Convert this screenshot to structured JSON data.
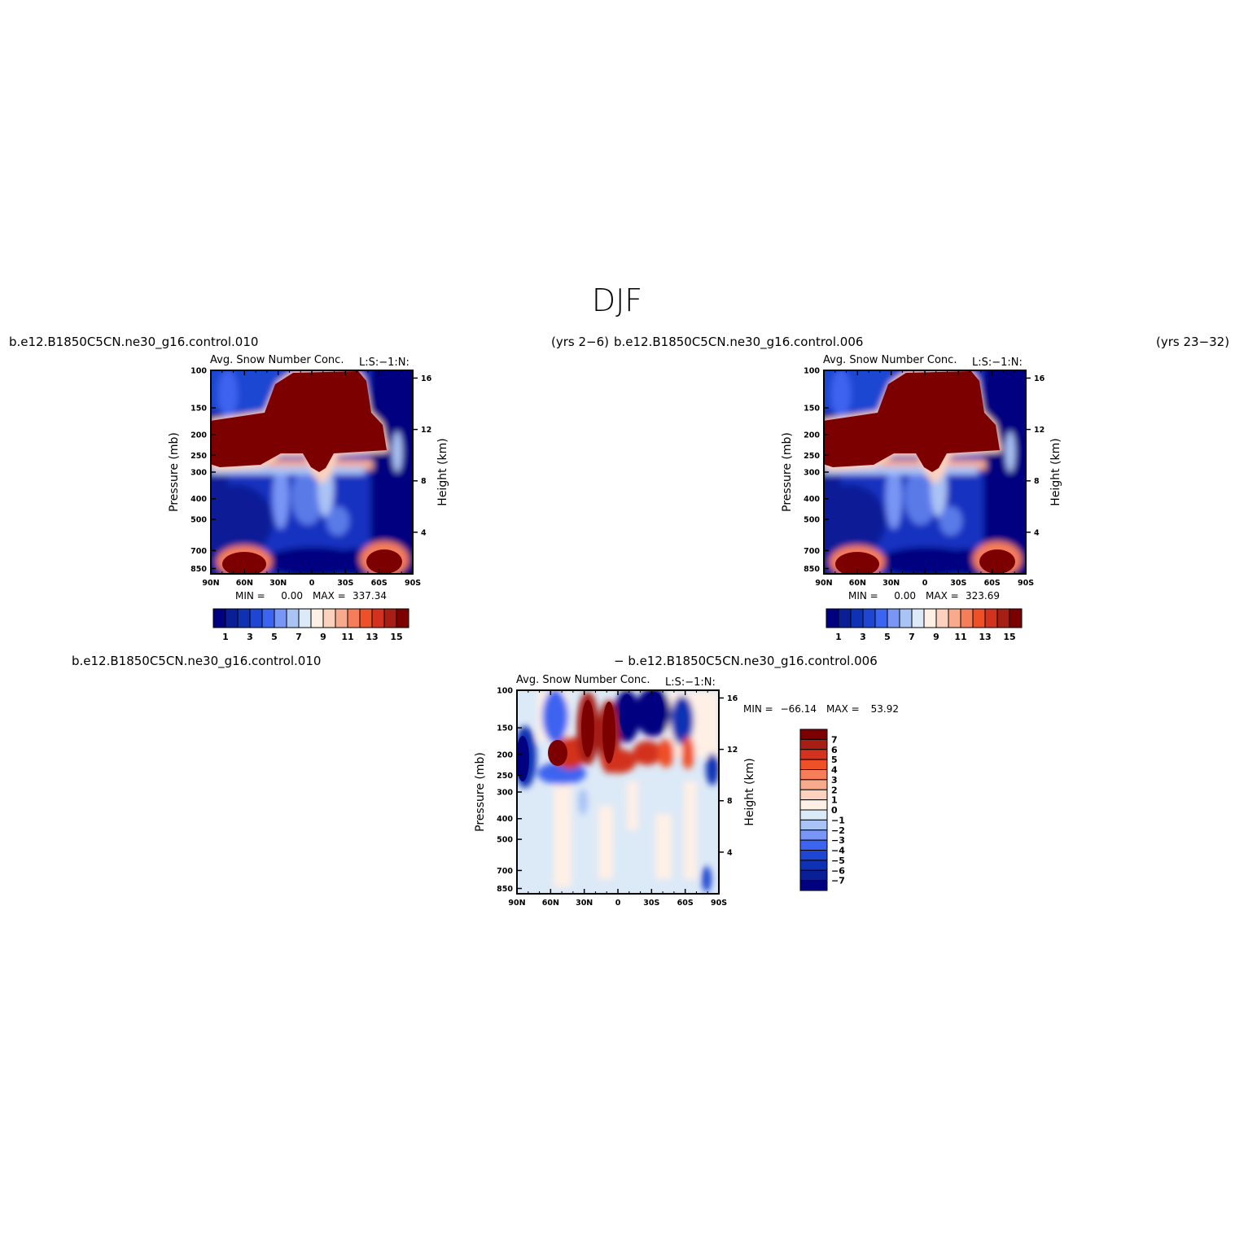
{
  "figure": {
    "title": "DJF",
    "panel1_left": "b.e12.B1850C5CN.ne30_g16.control.010",
    "panel1_right": "(yrs  2−6)",
    "panel2_left": "b.e12.B1850C5CN.ne30_g16.control.006",
    "panel2_right": "(yrs  23−32)",
    "panel3_left": "b.e12.B1850C5CN.ne30_g16.control.010",
    "panel3_right": "− b.e12.B1850C5CN.ne30_g16.control.006"
  },
  "colors": {
    "seq": [
      "#000080",
      "#0a1e96",
      "#0f32b4",
      "#1e46d2",
      "#3c64f0",
      "#7896f5",
      "#aac3f5",
      "#dce9f7",
      "#fff0e6",
      "#fcd2be",
      "#f8aa8c",
      "#f57d5a",
      "#ee5028",
      "#d2321e",
      "#a61e14",
      "#7d0000"
    ],
    "div": [
      "#000080",
      "#0a1e96",
      "#0f32b4",
      "#1e46d2",
      "#3c64f0",
      "#7896f5",
      "#aac3f5",
      "#dce9f7",
      "#fff0e6",
      "#fcd2be",
      "#f8aa8c",
      "#f57d5a",
      "#ee5028",
      "#d2321e",
      "#a61e14",
      "#7d0000"
    ]
  },
  "chart_data": [
    {
      "type": "heatmap",
      "title": "Avg. Snow Number Conc.",
      "units": "L:S:−1:N:",
      "xlabel": "",
      "ylabel": "Pressure (mb)",
      "ylabel_right": "Height (km)",
      "x_ticks": [
        "90N",
        "60N",
        "30N",
        "0",
        "30S",
        "60S",
        "90S"
      ],
      "y_ticks": [
        "100",
        "150",
        "200",
        "250",
        "300",
        "400",
        "500",
        "700",
        "850"
      ],
      "y_right_ticks": [
        "16",
        "12",
        "8",
        "4"
      ],
      "min_label": "MIN =",
      "min_value": "0.00",
      "max_label": "MAX =",
      "max_value": "337.34",
      "colorbar_labels": [
        "1",
        "3",
        "5",
        "7",
        "9",
        "11",
        "13",
        "15"
      ],
      "levels": [
        1,
        2,
        3,
        4,
        5,
        6,
        7,
        8,
        9,
        10,
        11,
        12,
        13,
        14,
        15
      ]
    },
    {
      "type": "heatmap",
      "title": "Avg. Snow Number Conc.",
      "units": "L:S:−1:N:",
      "xlabel": "",
      "ylabel": "Pressure (mb)",
      "ylabel_right": "Height (km)",
      "x_ticks": [
        "90N",
        "60N",
        "30N",
        "0",
        "30S",
        "60S",
        "90S"
      ],
      "y_ticks": [
        "100",
        "150",
        "200",
        "250",
        "300",
        "400",
        "500",
        "700",
        "850"
      ],
      "y_right_ticks": [
        "16",
        "12",
        "8",
        "4"
      ],
      "min_label": "MIN =",
      "min_value": "0.00",
      "max_label": "MAX =",
      "max_value": "323.69",
      "colorbar_labels": [
        "1",
        "3",
        "5",
        "7",
        "9",
        "11",
        "13",
        "15"
      ],
      "levels": [
        1,
        2,
        3,
        4,
        5,
        6,
        7,
        8,
        9,
        10,
        11,
        12,
        13,
        14,
        15
      ]
    },
    {
      "type": "heatmap",
      "title": "Avg. Snow Number Conc.",
      "units": "L:S:−1:N:",
      "xlabel": "",
      "ylabel": "Pressure (mb)",
      "ylabel_right": "Height (km)",
      "x_ticks": [
        "90N",
        "60N",
        "30N",
        "0",
        "30S",
        "60S",
        "90S"
      ],
      "y_ticks": [
        "100",
        "150",
        "200",
        "250",
        "300",
        "400",
        "500",
        "700",
        "850"
      ],
      "y_right_ticks": [
        "16",
        "12",
        "8",
        "4"
      ],
      "min_label": "MIN =",
      "min_value": "−66.14",
      "max_label": "MAX =",
      "max_value": "53.92",
      "colorbar_labels": [
        "7",
        "6",
        "5",
        "4",
        "3",
        "2",
        "1",
        "0",
        "−1",
        "−2",
        "−3",
        "−4",
        "−5",
        "−6",
        "−7"
      ],
      "levels": [
        -7,
        -6,
        -5,
        -4,
        -3,
        -2,
        -1,
        0,
        1,
        2,
        3,
        4,
        5,
        6,
        7
      ]
    }
  ]
}
